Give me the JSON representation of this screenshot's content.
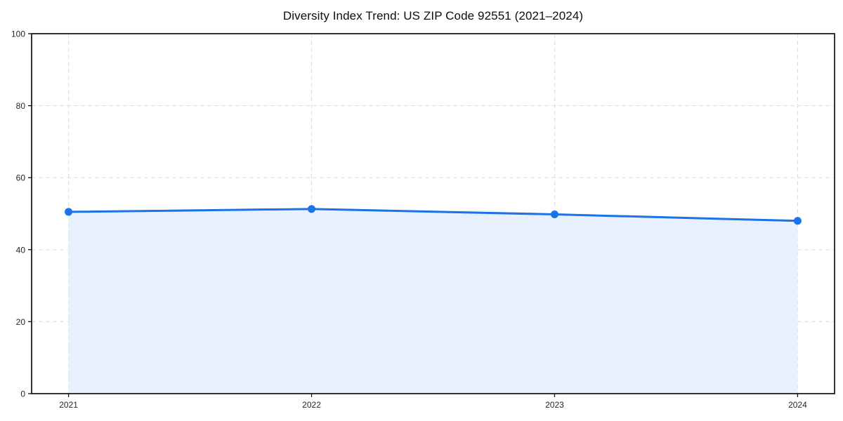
{
  "chart_data": {
    "type": "area",
    "title": "Diversity Index Trend: US ZIP Code 92551 (2021–2024)",
    "categories": [
      "2021",
      "2022",
      "2023",
      "2024"
    ],
    "series": [
      {
        "name": "Diversity Index",
        "values": [
          50.5,
          51.3,
          49.8,
          48.0
        ]
      }
    ],
    "xlabel": "",
    "ylabel": "",
    "ylim": [
      0,
      100
    ],
    "yticks": [
      0,
      20,
      40,
      60,
      80,
      100
    ],
    "grid": true,
    "grid_style": "dashed",
    "legend": "none",
    "marker": "circle",
    "colors": {
      "line": "#1a73e8",
      "marker": "#1a73e8",
      "fill": "#e8f0fe",
      "grid": "#e0e0e0",
      "spine": "#111111",
      "tick_label": "#262626",
      "title": "#0d0d0d",
      "background": "#ffffff"
    }
  }
}
